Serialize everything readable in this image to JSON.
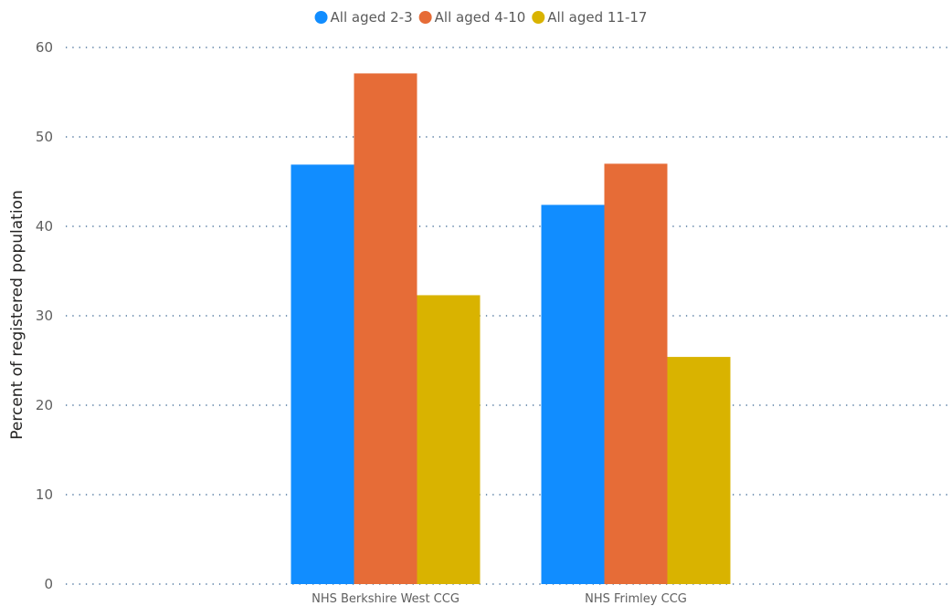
{
  "chart_data": {
    "type": "bar",
    "ylabel": "Percent of registered population",
    "xlabel": "",
    "ylim": [
      0,
      60
    ],
    "yticks": [
      0,
      10,
      20,
      30,
      40,
      50,
      60
    ],
    "grid": true,
    "legend_position": "top-center",
    "categories": [
      "NHS Berkshire West CCG",
      "NHS Frimley CCG"
    ],
    "series": [
      {
        "name": "All aged 2-3",
        "color": "#118dff",
        "values": [
          46.9,
          42.4
        ]
      },
      {
        "name": "All aged 4-10",
        "color": "#e66c37",
        "values": [
          57.1,
          47.0
        ]
      },
      {
        "name": "All aged 11-17",
        "color": "#d9b300",
        "values": [
          32.3,
          25.4
        ]
      }
    ]
  }
}
